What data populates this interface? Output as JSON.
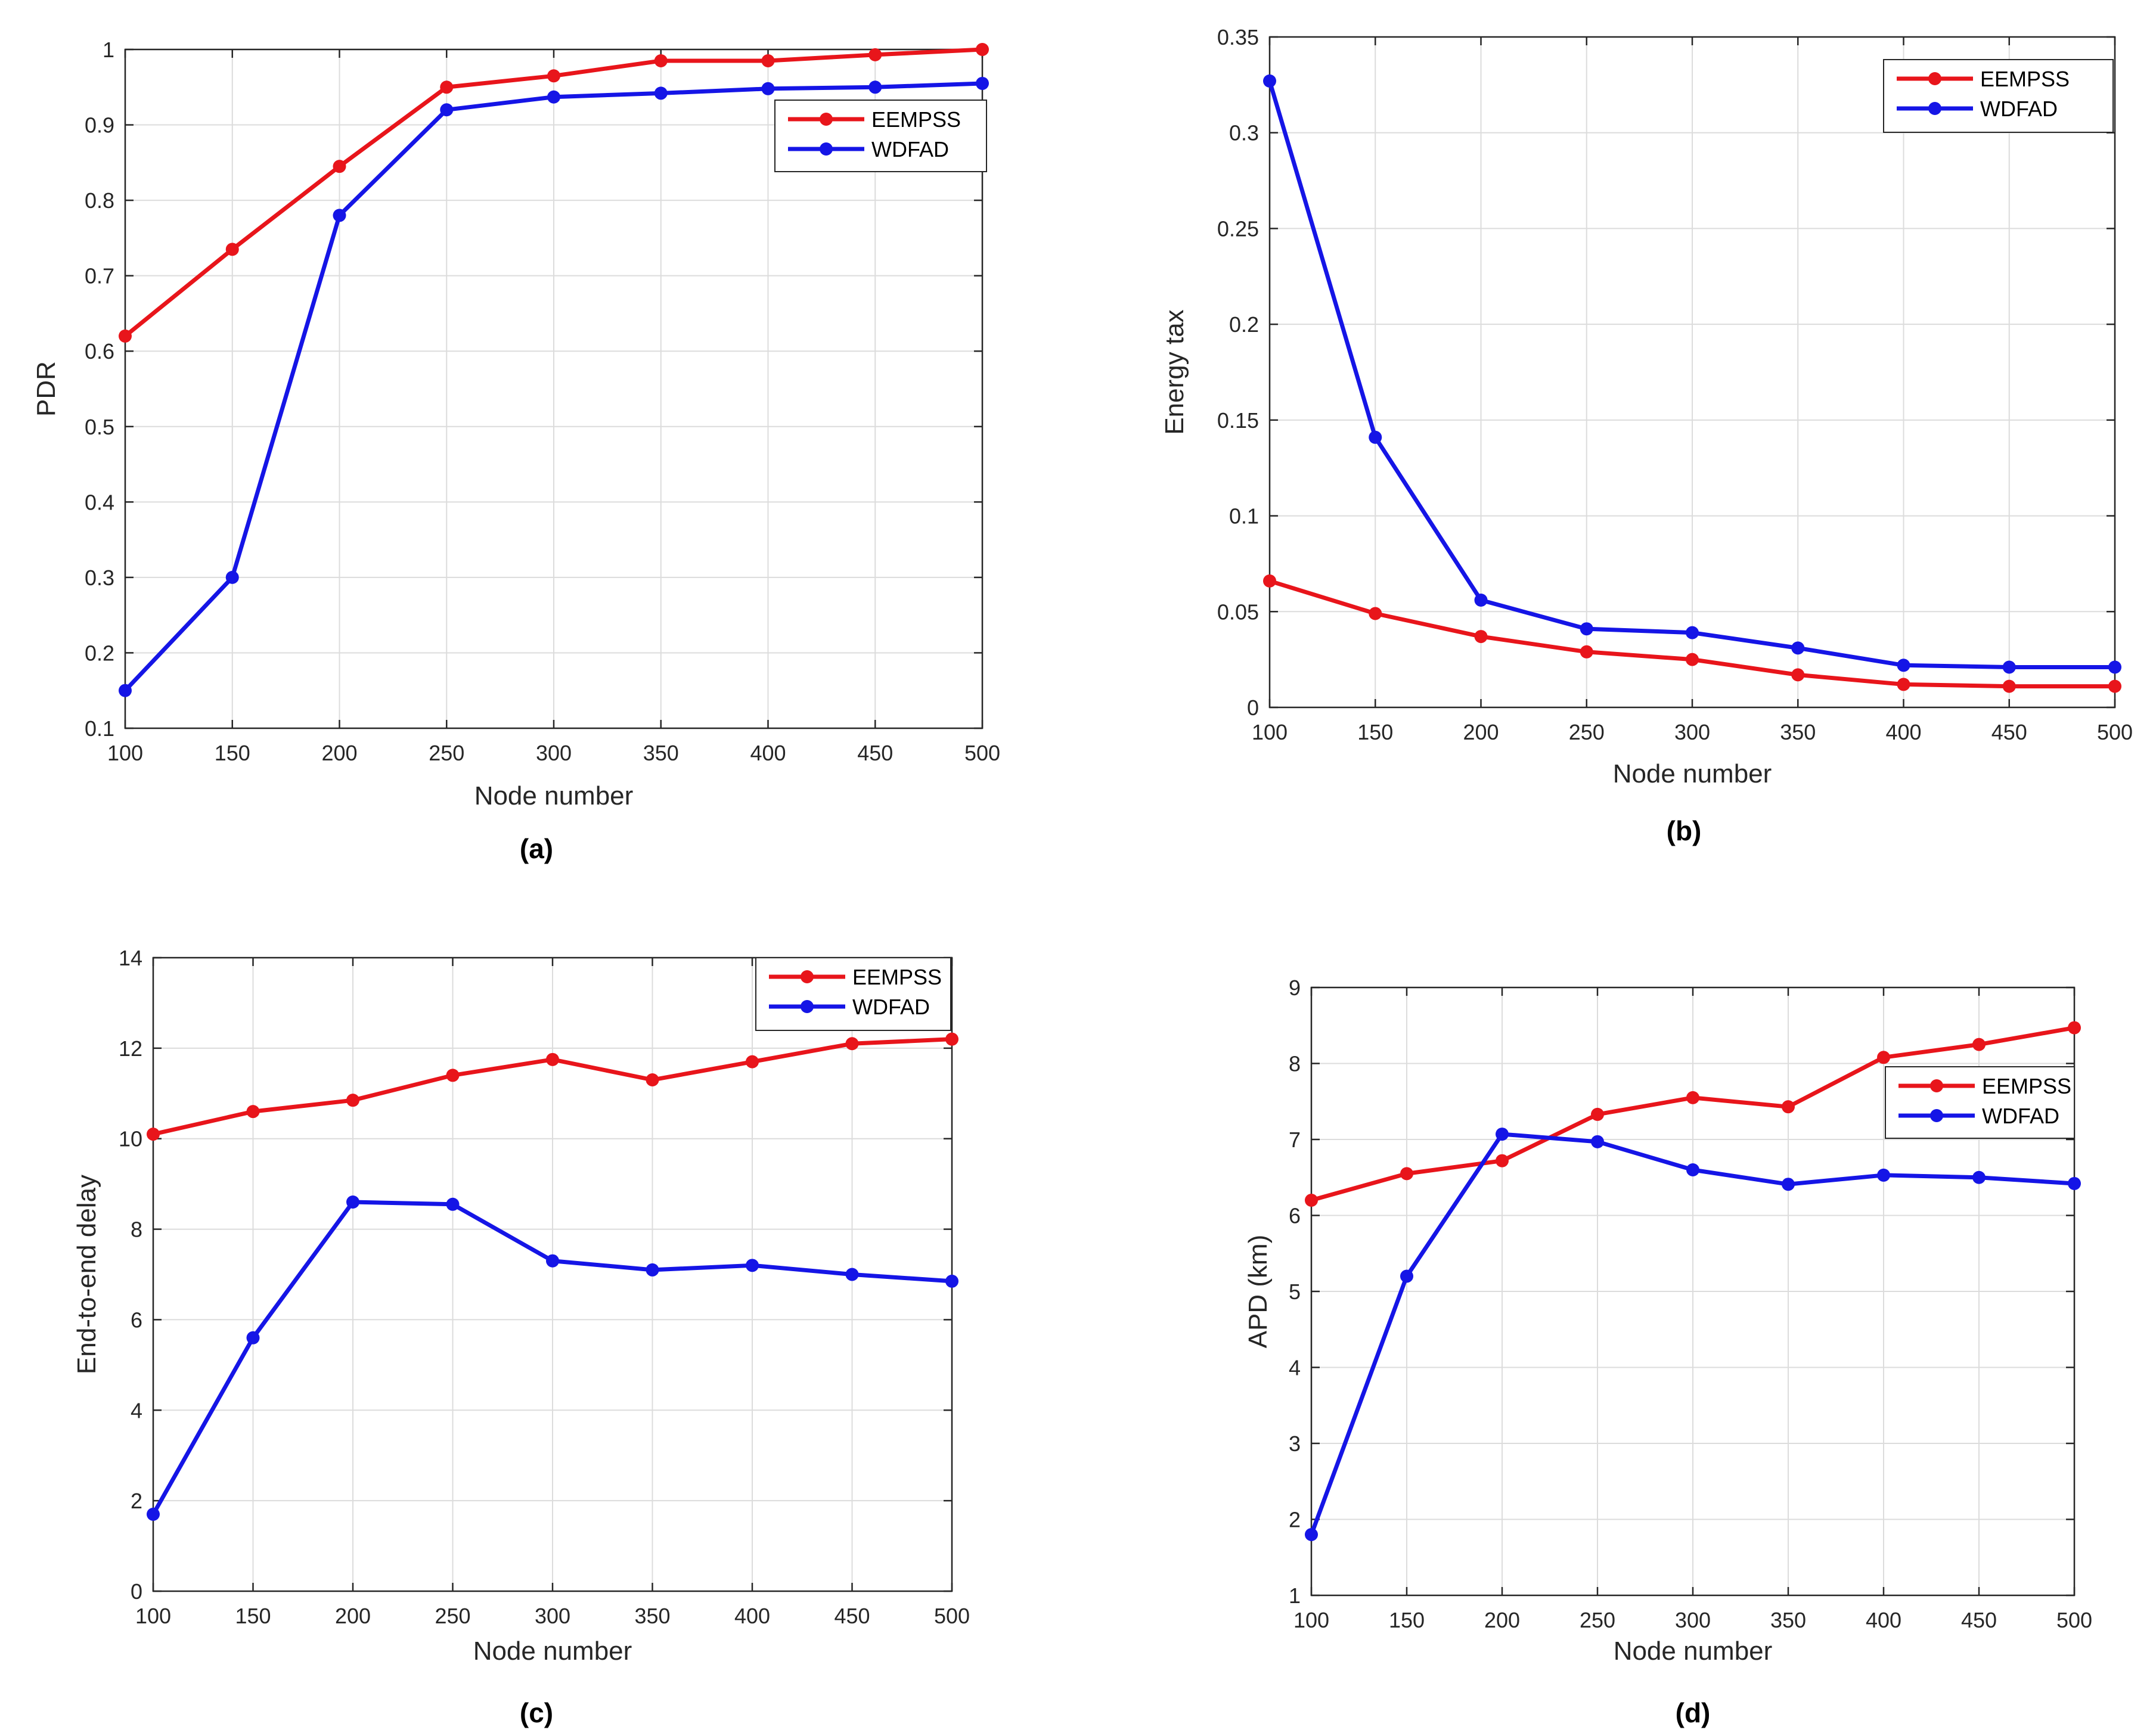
{
  "colors": {
    "EEMPSS": "#e8151b",
    "WDFAD": "#1515e6",
    "grid": "#dcdcdc",
    "axis": "#262626"
  },
  "chart_data": [
    {
      "type": "line",
      "caption": "(a)",
      "xlabel": "Node number",
      "ylabel": "PDR",
      "x": [
        100,
        150,
        200,
        250,
        300,
        350,
        400,
        450,
        500
      ],
      "xlim": [
        100,
        500
      ],
      "ylim": [
        0.1,
        1
      ],
      "xticks": [
        100,
        150,
        200,
        250,
        300,
        350,
        400,
        450,
        500
      ],
      "yticks": [
        0.1,
        0.2,
        0.3,
        0.4,
        0.5,
        0.6,
        0.7,
        0.8,
        0.9,
        1
      ],
      "legend_position": "top-right",
      "series": [
        {
          "name": "EEMPSS",
          "values": [
            0.62,
            0.735,
            0.845,
            0.95,
            0.965,
            0.985,
            0.985,
            0.993,
            1.0
          ]
        },
        {
          "name": "WDFAD",
          "values": [
            0.15,
            0.3,
            0.78,
            0.92,
            0.937,
            0.942,
            0.948,
            0.95,
            0.955
          ]
        }
      ]
    },
    {
      "type": "line",
      "caption": "(b)",
      "xlabel": "Node number",
      "ylabel": "Energy tax",
      "x": [
        100,
        150,
        200,
        250,
        300,
        350,
        400,
        450,
        500
      ],
      "xlim": [
        100,
        500
      ],
      "ylim": [
        0,
        0.35
      ],
      "xticks": [
        100,
        150,
        200,
        250,
        300,
        350,
        400,
        450,
        500
      ],
      "yticks": [
        0,
        0.05,
        0.1,
        0.15,
        0.2,
        0.25,
        0.3,
        0.35
      ],
      "legend_position": "top-right",
      "series": [
        {
          "name": "EEMPSS",
          "values": [
            0.066,
            0.049,
            0.037,
            0.029,
            0.025,
            0.017,
            0.012,
            0.011,
            0.011
          ]
        },
        {
          "name": "WDFAD",
          "values": [
            0.327,
            0.141,
            0.056,
            0.041,
            0.039,
            0.031,
            0.022,
            0.021,
            0.021
          ]
        }
      ]
    },
    {
      "type": "line",
      "caption": "(c)",
      "xlabel": "Node number",
      "ylabel": "End-to-end delay",
      "x": [
        100,
        150,
        200,
        250,
        300,
        350,
        400,
        450,
        500
      ],
      "xlim": [
        100,
        500
      ],
      "ylim": [
        0,
        14
      ],
      "xticks": [
        100,
        150,
        200,
        250,
        300,
        350,
        400,
        450,
        500
      ],
      "yticks": [
        0,
        2,
        4,
        6,
        8,
        10,
        12,
        14
      ],
      "legend_position": "top-right",
      "series": [
        {
          "name": "EEMPSS",
          "values": [
            10.1,
            10.6,
            10.85,
            11.4,
            11.75,
            11.3,
            11.7,
            12.1,
            12.2
          ]
        },
        {
          "name": "WDFAD",
          "values": [
            1.7,
            5.6,
            8.6,
            8.55,
            7.3,
            7.1,
            7.2,
            7.0,
            6.85
          ]
        }
      ]
    },
    {
      "type": "line",
      "caption": "(d)",
      "xlabel": "Node number",
      "ylabel": "APD (km)",
      "x": [
        100,
        150,
        200,
        250,
        300,
        350,
        400,
        450,
        500
      ],
      "xlim": [
        100,
        500
      ],
      "ylim": [
        1,
        9
      ],
      "xticks": [
        100,
        150,
        200,
        250,
        300,
        350,
        400,
        450,
        500
      ],
      "yticks": [
        1,
        2,
        3,
        4,
        5,
        6,
        7,
        8,
        9
      ],
      "legend_position": "right",
      "series": [
        {
          "name": "EEMPSS",
          "values": [
            6.2,
            6.55,
            6.72,
            7.33,
            7.55,
            7.43,
            8.08,
            8.25,
            8.47
          ]
        },
        {
          "name": "WDFAD",
          "values": [
            1.8,
            5.2,
            7.07,
            6.97,
            6.6,
            6.41,
            6.53,
            6.5,
            6.42
          ]
        }
      ]
    }
  ]
}
